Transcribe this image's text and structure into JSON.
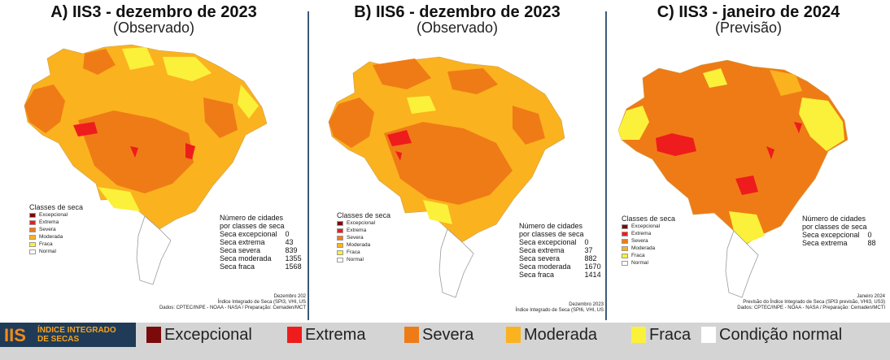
{
  "panels": [
    {
      "title": "A) IIS3 - dezembro de 2023",
      "subtitle": "(Observado)",
      "legend_title": "Classes de seca",
      "legend": [
        "Excepcional",
        "Extrema",
        "Severa",
        "Moderada",
        "Fraca",
        "Normal"
      ],
      "stats_header": [
        "Número de cidades",
        "por classes de seca"
      ],
      "stats": [
        {
          "label": "Seca excepcional",
          "value": "0"
        },
        {
          "label": "Seca extrema",
          "value": "43"
        },
        {
          "label": "Seca severa",
          "value": "839"
        },
        {
          "label": "Seca moderada",
          "value": "1355"
        },
        {
          "label": "Seca fraca",
          "value": "1568"
        }
      ],
      "credits": [
        "Dezembro 202",
        "Índice Integrado de Seca (SPI3, VHI, US",
        "Dados: CPTEC/INPE - NOAA - NASA / Preparação: Cemaden/MCT"
      ]
    },
    {
      "title": "B) IIS6 - dezembro de 2023",
      "subtitle": "(Observado)",
      "legend_title": "Classes de seca",
      "legend": [
        "Excepcional",
        "Extrema",
        "Severa",
        "Moderada",
        "Fraca",
        "Normal"
      ],
      "stats_header": [
        "Número de cidades",
        "por classes de seca"
      ],
      "stats": [
        {
          "label": "Seca excepcional",
          "value": "0"
        },
        {
          "label": "Seca extrema",
          "value": "37"
        },
        {
          "label": "Seca severa",
          "value": "882"
        },
        {
          "label": "Seca moderada",
          "value": "1670"
        },
        {
          "label": "Seca fraca",
          "value": "1414"
        }
      ],
      "credits": [
        "Dezembro 2023",
        "Índice Integrado de Seca (SPI6, VHI, US"
      ]
    },
    {
      "title": "C) IIS3 - janeiro de 2024",
      "subtitle": "(Previsão)",
      "legend_title": "Classes de seca",
      "legend": [
        "Excepcional",
        "Extrema",
        "Severa",
        "Moderada",
        "Fraca",
        "Normal"
      ],
      "stats_header": [
        "Número de cidades",
        "por classes de seca"
      ],
      "stats": [
        {
          "label": "Seca excepcional",
          "value": "0"
        },
        {
          "label": "Seca extrema",
          "value": "88"
        }
      ],
      "credits": [
        "Janeiro 2024",
        "Previsão do Índice Integrado de Seca (SPI3 previsão, VHI3, US3)",
        "Dados: CPTEC/INPE - NOAA - NASA / Preparação: Cemaden/MCTI"
      ]
    }
  ],
  "colors": {
    "excepcional": "#7b0a0a",
    "extrema": "#ee1c1c",
    "severa": "#ef7b16",
    "moderada": "#fbb21f",
    "fraca": "#fbf13a",
    "normal": "#ffffff"
  },
  "bar": {
    "logo_abbr": "IIS",
    "logo_text": [
      "ÍNDICE INTEGRADO",
      "DE SECAS"
    ],
    "classes": [
      "Excepcional",
      "Extrema",
      "Severa",
      "Moderada",
      "Fraca",
      "Condição normal"
    ]
  }
}
